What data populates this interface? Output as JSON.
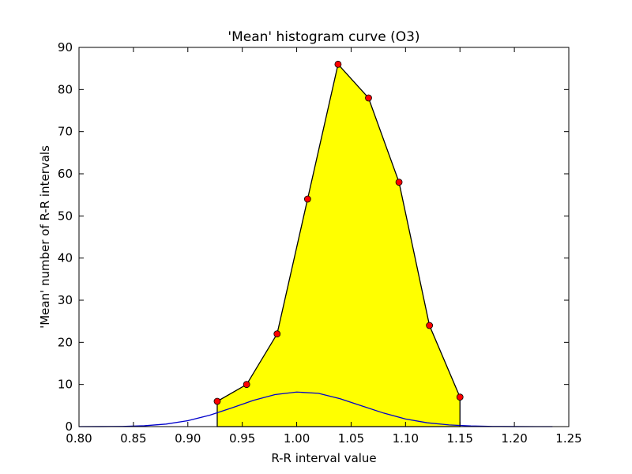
{
  "chart_data": {
    "type": "area",
    "title": "'Mean' histogram curve (O3)",
    "xlabel": "R-R interval value",
    "ylabel": "'Mean' number of R-R intervals",
    "xlim": [
      0.8,
      1.25
    ],
    "ylim": [
      0,
      90
    ],
    "xticks": [
      "0.80",
      "0.85",
      "0.90",
      "0.95",
      "1.00",
      "1.05",
      "1.10",
      "1.15",
      "1.20",
      "1.25"
    ],
    "yticks": [
      "0",
      "10",
      "20",
      "30",
      "40",
      "50",
      "60",
      "70",
      "80",
      "90"
    ],
    "grid": false,
    "series": [
      {
        "style": "filled polygon with markers",
        "fill_color": "#ffff00",
        "line_color": "#000000",
        "marker_color": "#ff0000",
        "x": [
          0.927,
          0.954,
          0.982,
          1.01,
          1.038,
          1.066,
          1.094,
          1.122,
          1.15
        ],
        "y": [
          6,
          10,
          22,
          54,
          86,
          78,
          58,
          24,
          7
        ]
      },
      {
        "style": "smooth line",
        "line_color": "#0000cc",
        "x": [
          0.8,
          0.82,
          0.84,
          0.86,
          0.88,
          0.9,
          0.92,
          0.94,
          0.96,
          0.98,
          1.0,
          1.02,
          1.04,
          1.06,
          1.08,
          1.1,
          1.12,
          1.14,
          1.16,
          1.18,
          1.2,
          1.22,
          1.235
        ],
        "y": [
          0.0,
          0.01,
          0.05,
          0.2,
          0.6,
          1.4,
          2.7,
          4.4,
          6.2,
          7.6,
          8.2,
          7.9,
          6.6,
          4.9,
          3.2,
          1.8,
          0.9,
          0.4,
          0.15,
          0.05,
          0.01,
          0.0,
          0.0
        ]
      }
    ]
  }
}
